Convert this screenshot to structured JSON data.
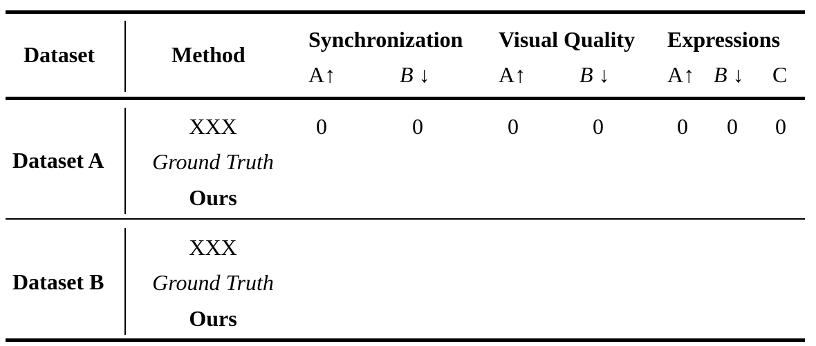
{
  "table": {
    "headers": {
      "dataset": "Dataset",
      "method": "Method",
      "groups": [
        "Synchronization",
        "Visual Quality",
        "Expressions"
      ],
      "sync_sub": [
        "A↑",
        "B ↓"
      ],
      "vq_sub": [
        "A↑",
        "B ↓"
      ],
      "expr_sub": [
        "A↑",
        "B ↓",
        "C"
      ]
    },
    "sections": [
      {
        "dataset": "Dataset A",
        "methods": [
          "XXX",
          "Ground Truth",
          "Ours"
        ],
        "values": [
          "0",
          "0",
          "0",
          "0",
          "0",
          "0",
          "0"
        ]
      },
      {
        "dataset": "Dataset B",
        "methods": [
          "XXX",
          "Ground Truth",
          "Ours"
        ],
        "values": []
      }
    ]
  }
}
